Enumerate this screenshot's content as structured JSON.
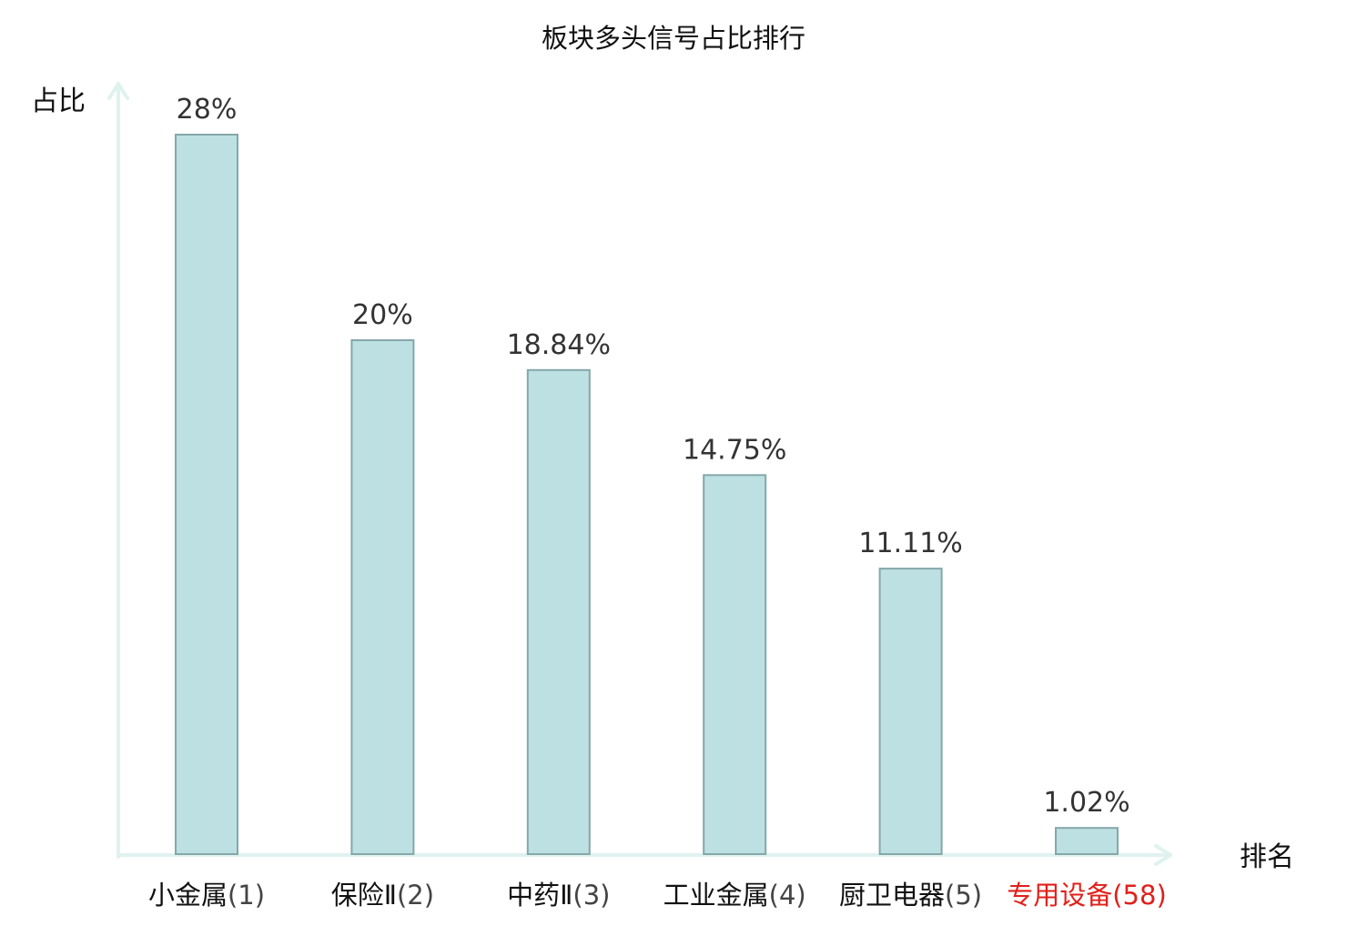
{
  "chart_data": {
    "type": "bar",
    "title": "板块多头信号占比排行",
    "ylabel": "占比",
    "xlabel": "排名",
    "categories": [
      {
        "name": "小金属",
        "rank": "(1)",
        "highlight": false
      },
      {
        "name": "保险Ⅱ",
        "rank": "(2)",
        "highlight": false
      },
      {
        "name": "中药Ⅱ",
        "rank": "(3)",
        "highlight": false
      },
      {
        "name": "工业金属",
        "rank": "(4)",
        "highlight": false
      },
      {
        "name": "厨卫电器",
        "rank": "(5)",
        "highlight": false
      },
      {
        "name": "专用设备",
        "rank": "(58)",
        "highlight": true
      }
    ],
    "values": [
      28,
      20,
      18.84,
      14.75,
      11.11,
      1.02
    ],
    "value_labels": [
      "28%",
      "20%",
      "18.84%",
      "14.75%",
      "11.11%",
      "1.02%"
    ],
    "ylim": [
      0,
      28
    ],
    "grid": false,
    "legend": "none",
    "colors": {
      "bar_fill": "#bde0e2",
      "bar_stroke": "#86a7aa",
      "axis": "#dff2ef",
      "text": "#111111",
      "value_text": "#333333",
      "highlight_text": "#e0201a"
    }
  }
}
